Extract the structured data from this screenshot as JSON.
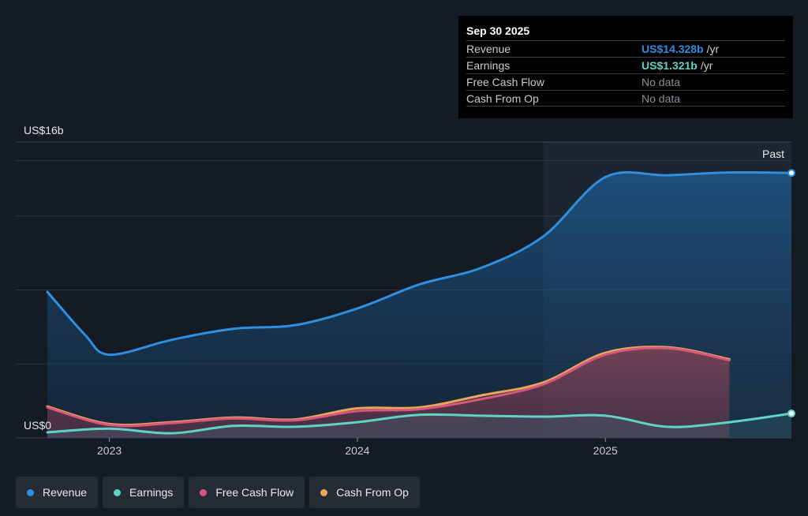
{
  "colors": {
    "revenue": "#2f8fe0",
    "earnings": "#5fd3c7",
    "fcf": "#d9567f",
    "cfo": "#e8a65a",
    "background": "#151b24"
  },
  "tooltip": {
    "date": "Sep 30 2025",
    "rows": [
      {
        "label": "Revenue",
        "value": "US$14.328b",
        "unit": "/yr",
        "color": "#2f8fe0"
      },
      {
        "label": "Earnings",
        "value": "US$1.321b",
        "unit": "/yr",
        "color": "#5fd3c7"
      },
      {
        "label": "Free Cash Flow",
        "value": "No data",
        "unit": ""
      },
      {
        "label": "Cash From Op",
        "value": "No data",
        "unit": ""
      }
    ]
  },
  "legend": [
    {
      "label": "Revenue",
      "color": "#2f8fe0"
    },
    {
      "label": "Earnings",
      "color": "#5fd3c7"
    },
    {
      "label": "Free Cash Flow",
      "color": "#d9567f"
    },
    {
      "label": "Cash From Op",
      "color": "#e8a65a"
    }
  ],
  "chart_data": {
    "type": "area",
    "y_top_label": "US$16b",
    "y_zero_label": "US$0",
    "past_label": "Past",
    "ylim": [
      0,
      16
    ],
    "xlim": [
      2022.75,
      2025.75
    ],
    "x_ticks": [
      {
        "label": "2023",
        "x": 2023.0
      },
      {
        "label": "2024",
        "x": 2024.0
      },
      {
        "label": "2025",
        "x": 2025.0
      }
    ],
    "grid": true,
    "past_start": 2024.75,
    "series": [
      {
        "name": "Revenue",
        "key": "revenue",
        "points": [
          [
            2022.75,
            7.9
          ],
          [
            2022.9,
            5.6
          ],
          [
            2023.0,
            4.5
          ],
          [
            2023.25,
            5.3
          ],
          [
            2023.5,
            5.9
          ],
          [
            2023.75,
            6.1
          ],
          [
            2024.0,
            7.0
          ],
          [
            2024.25,
            8.3
          ],
          [
            2024.5,
            9.2
          ],
          [
            2024.75,
            10.9
          ],
          [
            2025.0,
            14.1
          ],
          [
            2025.25,
            14.2
          ],
          [
            2025.5,
            14.35
          ],
          [
            2025.75,
            14.328
          ]
        ]
      },
      {
        "name": "Earnings",
        "key": "earnings",
        "points": [
          [
            2022.75,
            0.3
          ],
          [
            2023.0,
            0.5
          ],
          [
            2023.25,
            0.25
          ],
          [
            2023.5,
            0.65
          ],
          [
            2023.75,
            0.6
          ],
          [
            2024.0,
            0.85
          ],
          [
            2024.25,
            1.25
          ],
          [
            2024.5,
            1.2
          ],
          [
            2024.75,
            1.15
          ],
          [
            2025.0,
            1.2
          ],
          [
            2025.25,
            0.6
          ],
          [
            2025.5,
            0.85
          ],
          [
            2025.75,
            1.321
          ]
        ]
      },
      {
        "name": "Free Cash Flow",
        "key": "fcf",
        "points": [
          [
            2022.75,
            1.65
          ],
          [
            2023.0,
            0.7
          ],
          [
            2023.25,
            0.8
          ],
          [
            2023.5,
            1.05
          ],
          [
            2023.75,
            0.95
          ],
          [
            2024.0,
            1.45
          ],
          [
            2024.25,
            1.55
          ],
          [
            2024.5,
            2.1
          ],
          [
            2024.75,
            2.9
          ],
          [
            2025.0,
            4.5
          ],
          [
            2025.25,
            4.85
          ],
          [
            2025.5,
            4.2
          ]
        ]
      },
      {
        "name": "Cash From Op",
        "key": "cfo",
        "points": [
          [
            2022.75,
            1.7
          ],
          [
            2023.0,
            0.75
          ],
          [
            2023.25,
            0.85
          ],
          [
            2023.5,
            1.1
          ],
          [
            2023.75,
            1.0
          ],
          [
            2024.0,
            1.6
          ],
          [
            2024.25,
            1.65
          ],
          [
            2024.5,
            2.3
          ],
          [
            2024.75,
            3.0
          ],
          [
            2025.0,
            4.6
          ],
          [
            2025.25,
            4.9
          ],
          [
            2025.5,
            4.25
          ]
        ]
      }
    ]
  }
}
